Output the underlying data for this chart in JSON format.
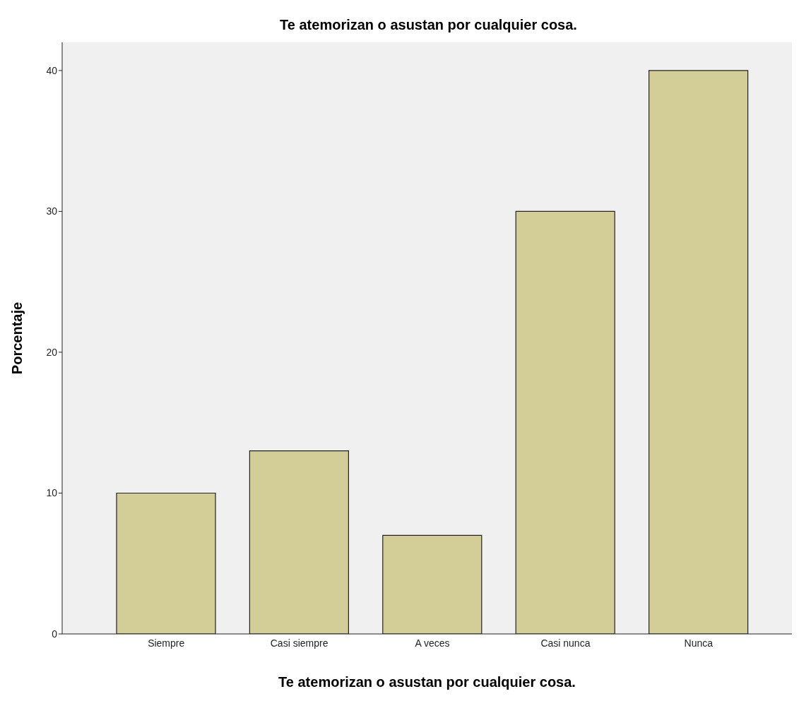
{
  "chart_data": {
    "type": "bar",
    "title": "Te atemorizan o asustan por cualquier cosa.",
    "xlabel": "Te atemorizan o asustan por cualquier cosa.",
    "ylabel": "Porcentaje",
    "categories": [
      "Siempre",
      "Casi siempre",
      "A veces",
      "Casi nunca",
      "Nunca"
    ],
    "values": [
      10,
      13,
      7,
      30,
      40
    ],
    "color": "#d3ce97",
    "ylim": [
      0,
      42
    ],
    "yticks": [
      0,
      10,
      20,
      30,
      40
    ]
  }
}
